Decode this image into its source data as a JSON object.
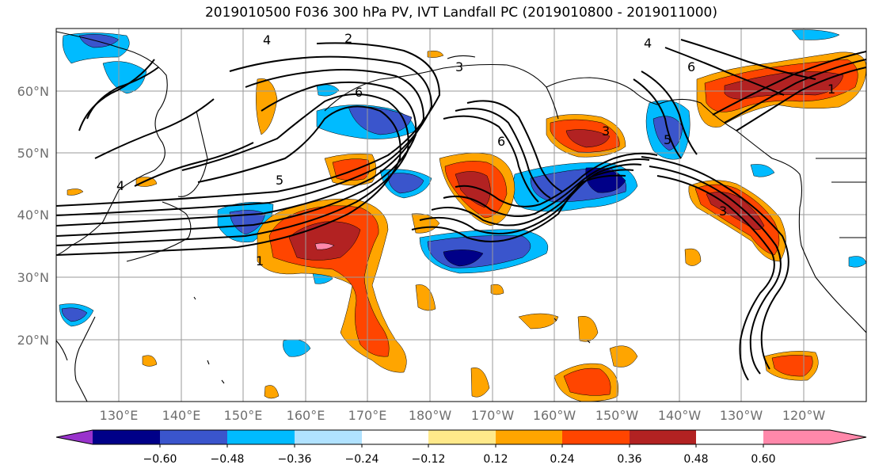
{
  "title": "2019010500 F036 300 hPa PV, IVT Landfall PC (2019010800 - 2019011000)",
  "lat_labels": [
    "60°N",
    "50°N",
    "40°N",
    "30°N",
    "20°N"
  ],
  "lon_labels": [
    "130°E",
    "140°E",
    "150°E",
    "160°E",
    "170°E",
    "180°W",
    "170°W",
    "160°W",
    "150°W",
    "140°W",
    "130°W",
    "120°W"
  ],
  "colorbar": {
    "colors": [
      "#9933cc",
      "#000088",
      "#3a55cc",
      "#00bbff",
      "#b0e2ff",
      "#ffffff",
      "#ffe98a",
      "#ffa500",
      "#ff4500",
      "#b22222",
      "#ff88aa"
    ],
    "tick_labels": [
      "−0.60",
      "−0.48",
      "−0.36",
      "−0.24",
      "−0.12",
      "0.12",
      "0.24",
      "0.36",
      "0.48",
      "0.60"
    ]
  },
  "contour_labels": [
    "4",
    "2",
    "3",
    "6",
    "6",
    "3",
    "5",
    "6",
    "5",
    "4",
    "3",
    "4",
    "1",
    "1"
  ],
  "colors": {
    "neg_strong": "#000088",
    "neg_mid": "#3a55cc",
    "neg_light": "#00bbff",
    "pos_light": "#ffa500",
    "pos_mid": "#ff4500",
    "pos_strong": "#b22222",
    "pos_max": "#ff88aa"
  }
}
